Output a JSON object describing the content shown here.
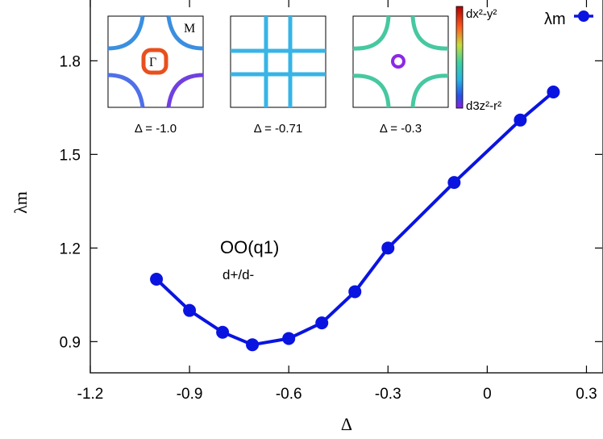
{
  "chart_data": {
    "type": "line",
    "xlabel": "Δ",
    "ylabel": "λm",
    "xlim": [
      -1.2,
      0.35
    ],
    "ylim": [
      0.8,
      2.0
    ],
    "xticks": [
      "-1.2",
      "-0.9",
      "-0.6",
      "-0.3",
      "0",
      "0.3"
    ],
    "xtick_values": [
      -1.2,
      -0.9,
      -0.6,
      -0.3,
      0,
      0.3
    ],
    "yticks": [
      "0.9",
      "1.2",
      "1.5",
      "1.8"
    ],
    "ytick_values": [
      0.9,
      1.2,
      1.5,
      1.8
    ],
    "legend": {
      "label": "λm",
      "position": "top-right"
    },
    "series": [
      {
        "name": "λm",
        "color": "#0a14e0",
        "x": [
          -1.0,
          -0.9,
          -0.8,
          -0.71,
          -0.6,
          -0.5,
          -0.4,
          -0.3,
          -0.1,
          0.1,
          0.2
        ],
        "y": [
          1.1,
          1.0,
          0.93,
          0.89,
          0.91,
          0.96,
          1.06,
          1.2,
          1.41,
          1.61,
          1.7
        ]
      }
    ],
    "annotation": {
      "main": "OO(q1)",
      "sub": "d+/d-"
    },
    "insets": [
      {
        "label": "Δ = -1.0",
        "markers": [
          "M",
          "Γ"
        ]
      },
      {
        "label": "Δ = -0.71"
      },
      {
        "label": "Δ = -0.3"
      }
    ],
    "colorbar": {
      "top_label": "dx²-y²",
      "bottom_label": "d3z²-r²"
    }
  }
}
